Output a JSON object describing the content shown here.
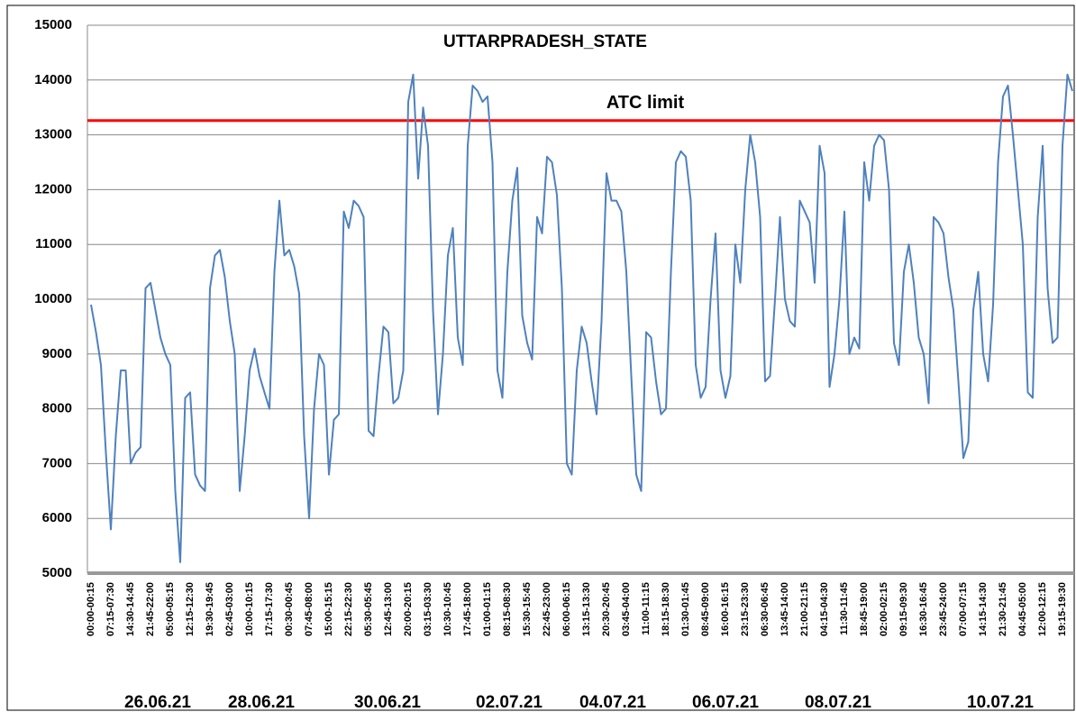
{
  "chart_data": {
    "type": "line",
    "title": "UTTARPRADESH_STATE",
    "color": "#4f81bd",
    "ylim": [
      5000,
      15000
    ],
    "yticks": [
      5000,
      6000,
      7000,
      8000,
      9000,
      10000,
      11000,
      12000,
      13000,
      14000,
      15000
    ],
    "grid": true,
    "reference_line": {
      "value": 13260,
      "label": "ATC limit",
      "color": "#ff0000"
    },
    "date_labels": [
      "26.06.21",
      "28.06.21",
      "30.06.21",
      "02.07.21",
      "04.07.21",
      "06.07.21",
      "08.07.21",
      "10.07.21"
    ],
    "categories": [
      "00:00-00:15",
      null,
      null,
      null,
      "07:15-07:30",
      null,
      null,
      null,
      "14:30-14:45",
      null,
      null,
      null,
      "21:45-22:00",
      null,
      null,
      null,
      "05:00-05:15",
      null,
      null,
      null,
      "12:15-12:30",
      null,
      null,
      null,
      "19:30-19:45",
      null,
      null,
      null,
      "02:45-03:00",
      null,
      null,
      null,
      "10:00-10:15",
      null,
      null,
      null,
      "17:15-17:30",
      null,
      null,
      null,
      "00:30-00:45",
      null,
      null,
      null,
      "07:45-08:00",
      null,
      null,
      null,
      "15:00-15:15",
      null,
      null,
      null,
      "22:15-22:30",
      null,
      null,
      null,
      "05:30-05:45",
      null,
      null,
      null,
      "12:45-13:00",
      null,
      null,
      null,
      "20:00-20:15",
      null,
      null,
      null,
      "03:15-03:30",
      null,
      null,
      null,
      "10:30-10:45",
      null,
      null,
      null,
      "17:45-18:00",
      null,
      null,
      null,
      "01:00-01:15",
      null,
      null,
      null,
      "08:15-08:30",
      null,
      null,
      null,
      "15:30-15:45",
      null,
      null,
      null,
      "22:45-23:00",
      null,
      null,
      null,
      "06:00-06:15",
      null,
      null,
      null,
      "13:15-13:30",
      null,
      null,
      null,
      "20:30-20:45",
      null,
      null,
      null,
      "03:45-04:00",
      null,
      null,
      null,
      "11:00-11:15",
      null,
      null,
      null,
      "18:15-18:30",
      null,
      null,
      null,
      "01:30-01:45",
      null,
      null,
      null,
      "08:45-09:00",
      null,
      null,
      null,
      "16:00-16:15",
      null,
      null,
      null,
      "23:15-23:30",
      null,
      null,
      null,
      "06:30-06:45",
      null,
      null,
      null,
      "13:45-14:00",
      null,
      null,
      null,
      "21:00-21:15",
      null,
      null,
      null,
      "04:15-04:30",
      null,
      null,
      null,
      "11:30-11:45",
      null,
      null,
      null,
      "18:45-19:00",
      null,
      null,
      null,
      "02:00-02:15",
      null,
      null,
      null,
      "09:15-09:30",
      null,
      null,
      null,
      "16:30-16:45",
      null,
      null,
      null,
      "23:45-24:00",
      null,
      null,
      null,
      "07:00-07:15",
      null,
      null,
      null,
      "14:15-14:30",
      null,
      null,
      null,
      "21:30-21:45",
      null,
      null,
      null,
      "04:45-05:00",
      null,
      null,
      null,
      "12:00-12:15",
      null,
      null,
      null,
      "19:15-19:30",
      null,
      null
    ],
    "values": [
      9900,
      9400,
      8800,
      7200,
      5800,
      7500,
      8700,
      8700,
      7000,
      7200,
      7300,
      10200,
      10300,
      9800,
      9300,
      9000,
      8800,
      6500,
      5200,
      8200,
      8300,
      6800,
      6600,
      6500,
      10200,
      10800,
      10900,
      10400,
      9600,
      9000,
      6500,
      7500,
      8700,
      9100,
      8600,
      8300,
      8000,
      10500,
      11800,
      10800,
      10900,
      10600,
      10100,
      7500,
      6000,
      8000,
      9000,
      8800,
      6800,
      7800,
      7900,
      11600,
      11300,
      11800,
      11700,
      11500,
      7600,
      7500,
      8600,
      9500,
      9400,
      8100,
      8200,
      8700,
      13600,
      14100,
      12200,
      13500,
      12800,
      9800,
      7900,
      9000,
      10800,
      11300,
      9300,
      8800,
      12800,
      13900,
      13800,
      13600,
      13700,
      12500,
      8700,
      8200,
      10500,
      11800,
      12400,
      9700,
      9200,
      8900,
      11500,
      11200,
      12600,
      12500,
      11900,
      10200,
      7000,
      6800,
      8700,
      9500,
      9200,
      8500,
      7900,
      9600,
      12300,
      11800,
      11800,
      11600,
      10500,
      8600,
      6800,
      6500,
      9400,
      9300,
      8500,
      7900,
      8000,
      10500,
      12500,
      12700,
      12600,
      11800,
      8800,
      8200,
      8400,
      10000,
      11200,
      8700,
      8200,
      8600,
      11000,
      10300,
      12000,
      13000,
      12500,
      11500,
      8500,
      8600,
      10000,
      11500,
      10000,
      9600,
      9500,
      11800,
      11600,
      11400,
      10300,
      12800,
      12300,
      8400,
      9000,
      10000,
      11600,
      9000,
      9300,
      9100,
      12500,
      11800,
      12800,
      13000,
      12900,
      12000,
      9200,
      8800,
      10500,
      11000,
      10300,
      9300,
      9000,
      8100,
      11500,
      11400,
      11200,
      10400,
      9800,
      8500,
      7100,
      7400,
      9800,
      10500,
      9000,
      8500,
      9900,
      12500,
      13700,
      13900,
      13000,
      12000,
      11000,
      8300,
      8200,
      11500,
      12800,
      10200,
      9200,
      9300,
      12800,
      14100,
      13800
    ]
  }
}
